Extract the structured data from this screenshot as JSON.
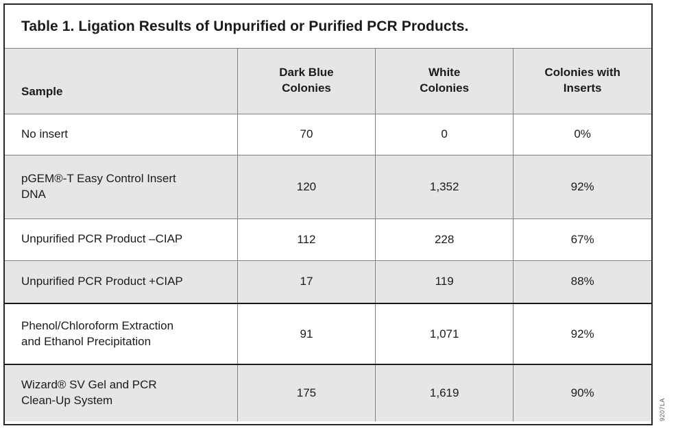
{
  "title": "Table 1. Ligation Results of Unpurified or Purified PCR Products.",
  "table": {
    "columns": {
      "sample": "Sample",
      "dark_blue": "Dark Blue\nColonies",
      "white": "White\nColonies",
      "inserts": "Colonies with\nInserts"
    },
    "rows": [
      {
        "sample": "No insert",
        "dark_blue": "70",
        "white": "0",
        "inserts": "0%"
      },
      {
        "sample": "pGEM®-T Easy Control Insert\nDNA",
        "dark_blue": "120",
        "white": "1,352",
        "inserts": "92%"
      },
      {
        "sample": "Unpurified PCR Product –CIAP",
        "dark_blue": "112",
        "white": "228",
        "inserts": "67%"
      },
      {
        "sample": "Unpurified PCR Product +CIAP",
        "dark_blue": "17",
        "white": "119",
        "inserts": "88%"
      },
      {
        "sample": "Phenol/Chloroform Extraction\nand Ethanol Precipitation",
        "dark_blue": "91",
        "white": "1,071",
        "inserts": "92%"
      },
      {
        "sample": "Wizard® SV Gel and PCR\nClean-Up System",
        "dark_blue": "175",
        "white": "1,619",
        "inserts": "90%"
      }
    ]
  },
  "watermark": "9207LA",
  "colors": {
    "shaded_row": "#e6e6e6",
    "thin_line": "#7f7f7f",
    "thick_line": "#1a1a1a",
    "frame_border": "#262626",
    "text": "#1a1a1a"
  }
}
